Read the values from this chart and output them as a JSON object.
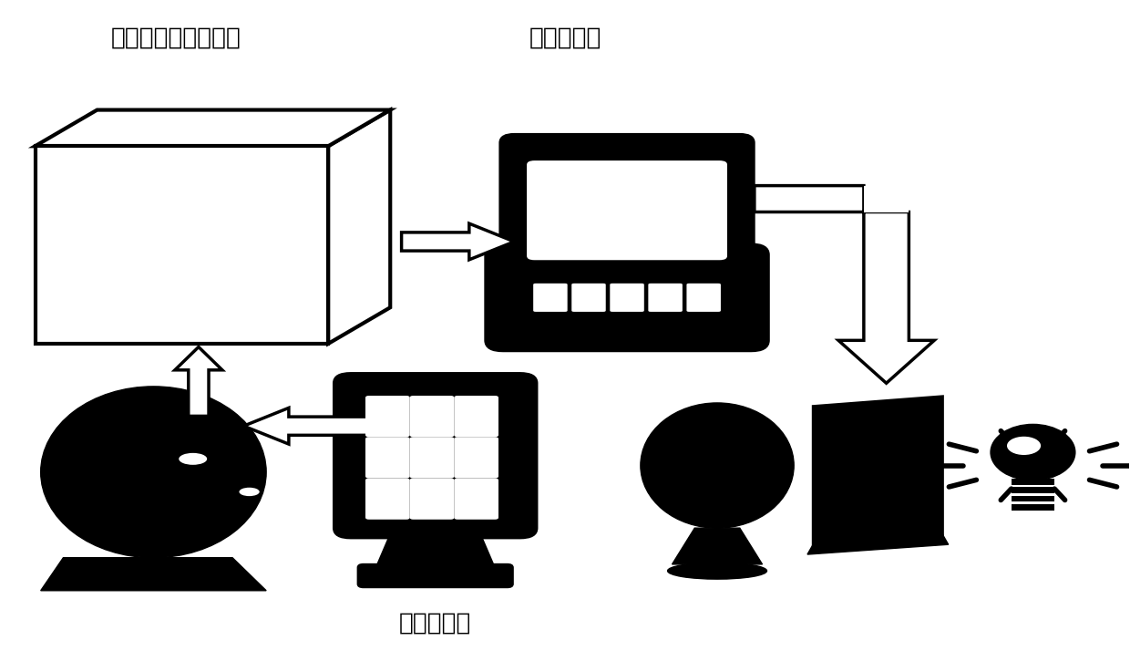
{
  "background_color": "#ffffff",
  "figsize": [
    12.4,
    7.25
  ],
  "dpi": 100,
  "labels": {
    "eeg_collector": "头表脑电信号采集器",
    "freq_analyzer": "频率分析器",
    "flash_stimulator": "闪光刺激器"
  },
  "label_positions": {
    "eeg_collector": [
      0.155,
      0.945
    ],
    "freq_analyzer": [
      0.5,
      0.945
    ],
    "flash_stimulator": [
      0.385,
      0.055
    ]
  },
  "colors": {
    "black": "#000000",
    "white": "#ffffff"
  }
}
